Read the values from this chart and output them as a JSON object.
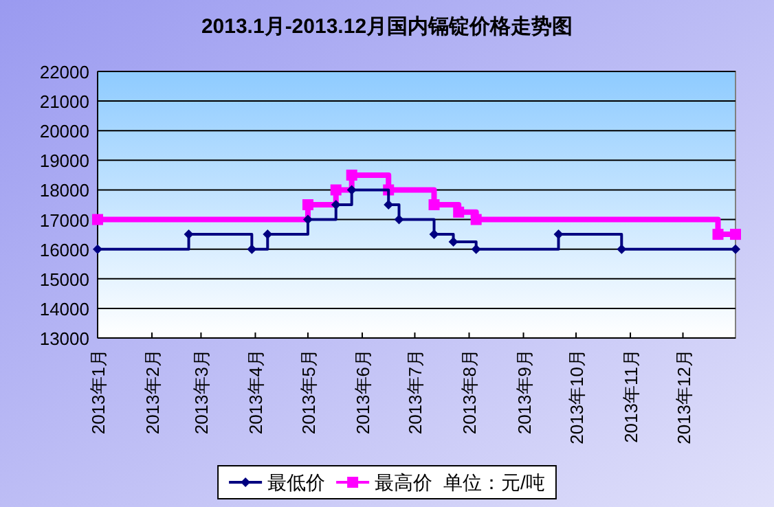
{
  "chart_data": {
    "type": "step",
    "title": "2013.1月-2013.12月国内镉锭价格走势图",
    "xlim": [
      "2013-01-01",
      "2013-12-31"
    ],
    "xticks": [
      {
        "value": "2013-01-01",
        "label": "2013年1月"
      },
      {
        "value": "2013-02-01",
        "label": "2013年2月"
      },
      {
        "value": "2013-03-01",
        "label": "2013年3月"
      },
      {
        "value": "2013-04-01",
        "label": "2013年4月"
      },
      {
        "value": "2013-05-01",
        "label": "2013年5月"
      },
      {
        "value": "2013-06-01",
        "label": "2013年6月"
      },
      {
        "value": "2013-07-01",
        "label": "2013年7月"
      },
      {
        "value": "2013-08-01",
        "label": "2013年8月"
      },
      {
        "value": "2013-09-01",
        "label": "2013年9月"
      },
      {
        "value": "2013-10-01",
        "label": "2013年10月"
      },
      {
        "value": "2013-11-01",
        "label": "2013年11月"
      },
      {
        "value": "2013-12-01",
        "label": "2013年12月"
      }
    ],
    "ylim": [
      13000,
      22000
    ],
    "yticks": [
      13000,
      14000,
      15000,
      16000,
      17000,
      18000,
      19000,
      20000,
      21000,
      22000
    ],
    "grid": "y",
    "legend": "bottom",
    "annotations": [
      "单位：元/吨"
    ],
    "series": [
      {
        "name": "最低价",
        "color": "#000080",
        "marker": "diamond",
        "x": [
          "2013-01-01",
          "2013-02-22",
          "2013-03-30",
          "2013-04-08",
          "2013-05-01",
          "2013-05-17",
          "2013-05-26",
          "2013-06-16",
          "2013-06-22",
          "2013-07-12",
          "2013-07-23",
          "2013-08-05",
          "2013-09-21",
          "2013-10-27",
          "2013-12-31"
        ],
        "values": [
          16000,
          16500,
          16000,
          16500,
          17000,
          17500,
          18000,
          17500,
          17000,
          16500,
          16250,
          16000,
          16500,
          16000,
          16000
        ]
      },
      {
        "name": "最高价",
        "color": "#ff00ff",
        "marker": "square",
        "x": [
          "2013-01-01",
          "2013-05-01",
          "2013-05-17",
          "2013-05-26",
          "2013-06-16",
          "2013-07-12",
          "2013-07-26",
          "2013-08-05",
          "2013-12-21",
          "2013-12-31"
        ],
        "values": [
          17000,
          17500,
          18000,
          18500,
          18000,
          17500,
          17250,
          17000,
          16500,
          16500
        ]
      }
    ]
  }
}
